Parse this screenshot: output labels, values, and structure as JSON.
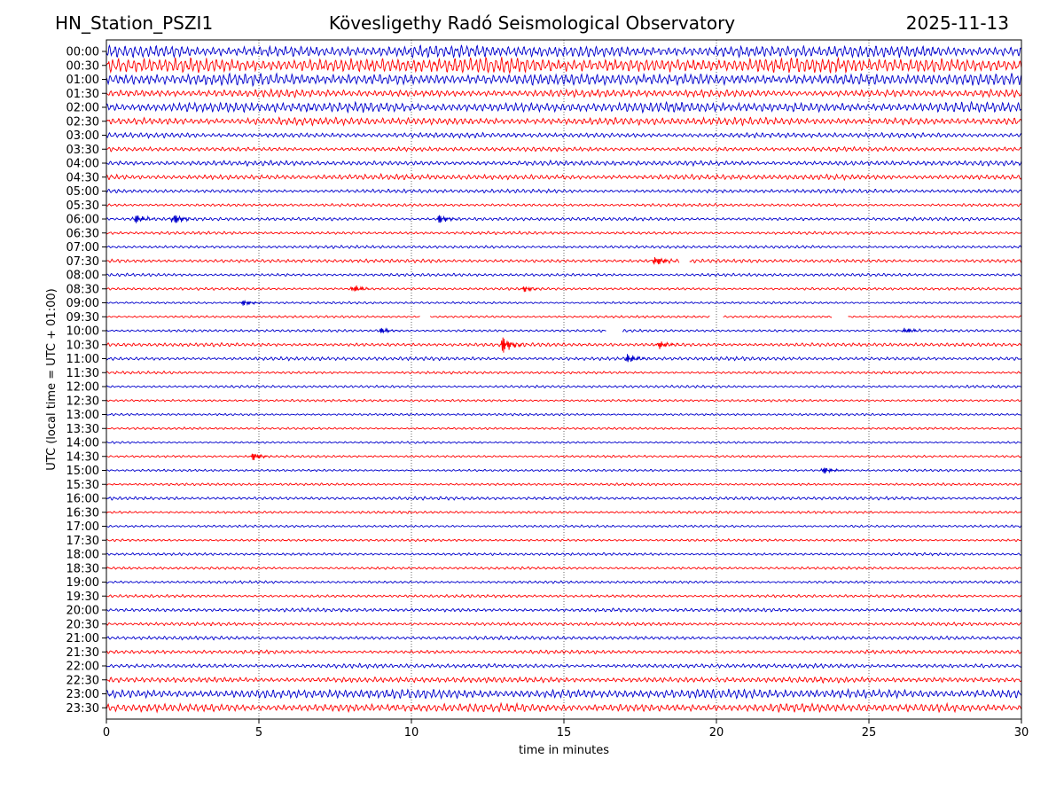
{
  "header": {
    "station": "HN_Station_PSZI1",
    "title": "Kövesligethy Radó Seismological Observatory",
    "date": "2025-11-13"
  },
  "chart_data": {
    "type": "line",
    "xlabel": "time in minutes",
    "ylabel": "UTC (local time = UTC + 01:00)",
    "xlim": [
      0,
      30
    ],
    "x_ticks": [
      0,
      5,
      10,
      15,
      20,
      25,
      30
    ],
    "grid": "vertical dotted at x ticks",
    "colors": {
      "even_row": "#0000cc",
      "odd_row": "#ff0000",
      "grid": "#000000"
    },
    "rows": [
      {
        "label": "00:00",
        "amp": 7.0
      },
      {
        "label": "00:30",
        "amp": 9.0
      },
      {
        "label": "01:00",
        "amp": 7.0
      },
      {
        "label": "01:30",
        "amp": 4.5
      },
      {
        "label": "02:00",
        "amp": 6.0
      },
      {
        "label": "02:30",
        "amp": 4.5
      },
      {
        "label": "03:00",
        "amp": 3.0
      },
      {
        "label": "03:30",
        "amp": 2.6
      },
      {
        "label": "04:00",
        "amp": 3.0
      },
      {
        "label": "04:30",
        "amp": 3.2
      },
      {
        "label": "05:00",
        "amp": 2.3
      },
      {
        "label": "05:30",
        "amp": 1.8
      },
      {
        "label": "06:00",
        "amp": 2.0
      },
      {
        "label": "06:30",
        "amp": 1.8
      },
      {
        "label": "07:00",
        "amp": 1.8
      },
      {
        "label": "07:30",
        "amp": 2.2
      },
      {
        "label": "08:00",
        "amp": 1.8
      },
      {
        "label": "08:30",
        "amp": 1.6
      },
      {
        "label": "09:00",
        "amp": 1.4
      },
      {
        "label": "09:30",
        "amp": 1.4
      },
      {
        "label": "10:00",
        "amp": 1.6
      },
      {
        "label": "10:30",
        "amp": 2.2
      },
      {
        "label": "11:00",
        "amp": 2.2
      },
      {
        "label": "11:30",
        "amp": 1.6
      },
      {
        "label": "12:00",
        "amp": 1.6
      },
      {
        "label": "12:30",
        "amp": 1.5
      },
      {
        "label": "13:00",
        "amp": 1.4
      },
      {
        "label": "13:30",
        "amp": 1.4
      },
      {
        "label": "14:00",
        "amp": 1.3
      },
      {
        "label": "14:30",
        "amp": 1.4
      },
      {
        "label": "15:00",
        "amp": 1.4
      },
      {
        "label": "15:30",
        "amp": 1.5
      },
      {
        "label": "16:00",
        "amp": 2.0
      },
      {
        "label": "16:30",
        "amp": 1.6
      },
      {
        "label": "17:00",
        "amp": 1.5
      },
      {
        "label": "17:30",
        "amp": 1.5
      },
      {
        "label": "18:00",
        "amp": 1.6
      },
      {
        "label": "18:30",
        "amp": 1.6
      },
      {
        "label": "19:00",
        "amp": 1.6
      },
      {
        "label": "19:30",
        "amp": 1.8
      },
      {
        "label": "20:00",
        "amp": 2.2
      },
      {
        "label": "20:30",
        "amp": 2.0
      },
      {
        "label": "21:00",
        "amp": 2.2
      },
      {
        "label": "21:30",
        "amp": 2.2
      },
      {
        "label": "22:00",
        "amp": 2.6
      },
      {
        "label": "22:30",
        "amp": 3.4
      },
      {
        "label": "23:00",
        "amp": 5.5
      },
      {
        "label": "23:30",
        "amp": 5.0
      }
    ],
    "events": [
      {
        "row": "06:00",
        "t": 0.95,
        "amp": 5
      },
      {
        "row": "06:00",
        "t": 2.2,
        "amp": 6
      },
      {
        "row": "06:00",
        "t": 10.9,
        "amp": 5
      },
      {
        "row": "07:30",
        "t": 18.0,
        "amp": 5
      },
      {
        "row": "08:30",
        "t": 8.1,
        "amp": 4
      },
      {
        "row": "08:30",
        "t": 13.7,
        "amp": 3
      },
      {
        "row": "09:00",
        "t": 4.5,
        "amp": 3
      },
      {
        "row": "10:00",
        "t": 9.0,
        "amp": 3
      },
      {
        "row": "10:00",
        "t": 26.2,
        "amp": 3
      },
      {
        "row": "10:30",
        "t": 13.0,
        "amp": 9
      },
      {
        "row": "10:30",
        "t": 18.1,
        "amp": 4
      },
      {
        "row": "11:00",
        "t": 17.1,
        "amp": 5
      },
      {
        "row": "14:30",
        "t": 4.8,
        "amp": 4
      },
      {
        "row": "15:00",
        "t": 23.5,
        "amp": 4
      }
    ],
    "gaps": [
      {
        "row": "07:30",
        "from": 18.8,
        "to": 19.1
      },
      {
        "row": "09:30",
        "from": 10.3,
        "to": 10.6
      },
      {
        "row": "09:30",
        "from": 19.8,
        "to": 20.2
      },
      {
        "row": "09:30",
        "from": 23.8,
        "to": 24.3
      },
      {
        "row": "10:00",
        "from": 16.4,
        "to": 16.9
      }
    ]
  }
}
